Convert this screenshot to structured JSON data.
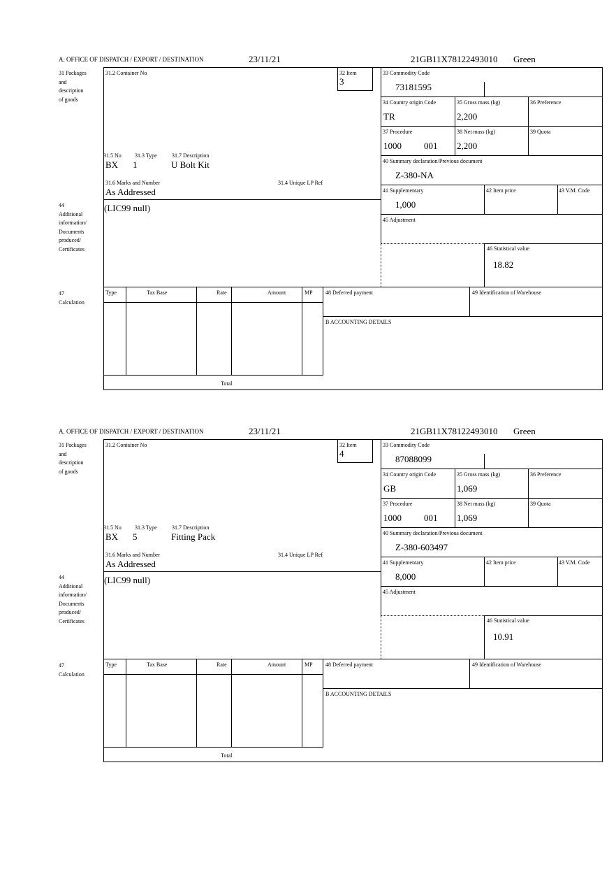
{
  "labels": {
    "office": "A.  OFFICE OF DISPATCH / EXPORT / DESTINATION",
    "packages": [
      "31 Packages",
      "and",
      "description",
      "of goods"
    ],
    "container": "31.2 Container No",
    "item": "32 Item",
    "no": "31.5 No",
    "type": "31.3 Type",
    "description": "31.7 Description",
    "marks": "31.6 Marks and Number",
    "unique_ref": "31.4 Unique LP Ref",
    "additional": [
      "44",
      "Additional",
      "information/",
      "Documents",
      "produced/",
      "Certificates"
    ],
    "commodity": "33 Commodity Code",
    "country": "34 Country origin Code",
    "gross": "35 Gross mass (kg)",
    "preference": "36 Preference",
    "procedure": "37 Procedure",
    "net": "38 Net mass (kg)",
    "quota": "39 Quota",
    "summary": "40 Summary declaration/Previous document",
    "supplementary": "41 Supplementary",
    "item_price": "42 Item price",
    "vm_code": "43 V.M. Code",
    "adjustment": "45 Adjustment",
    "statistical": "46 Statistical value",
    "calculation": [
      "47",
      "Calculation"
    ],
    "calc_cols": [
      "Type",
      "Tax Base",
      "Rate",
      "Amount",
      "MP"
    ],
    "total": "Total",
    "deferred": "48 Deferred payment",
    "warehouse": "49 Identification of Warehouse",
    "accounting": "B ACCOUNTING DETAILS"
  },
  "forms": [
    {
      "date": "23/11/21",
      "reference": "21GB11X78122493010",
      "route": "Green",
      "item": "3",
      "no": "BX",
      "type": "1",
      "description": "U Bolt Kit",
      "marks": "As Addressed",
      "additional": "(LIC99 null)",
      "commodity": "73181595",
      "country": "TR",
      "gross": "2,200",
      "procedure": "1000",
      "procedure_code": "001",
      "net": "2,200",
      "summary": "Z-380-NA",
      "supplementary": "1,000",
      "statistical": "18.82"
    },
    {
      "date": "23/11/21",
      "reference": "21GB11X78122493010",
      "route": "Green",
      "item": "4",
      "no": "BX",
      "type": "5",
      "description": "Fitting Pack",
      "marks": "As Addressed",
      "additional": "(LIC99 null)",
      "commodity": "87088099",
      "country": "GB",
      "gross": "1,069",
      "procedure": "1000",
      "procedure_code": "001",
      "net": "1,069",
      "summary": "Z-380-603497",
      "supplementary": "8,000",
      "statistical": "10.91"
    }
  ]
}
